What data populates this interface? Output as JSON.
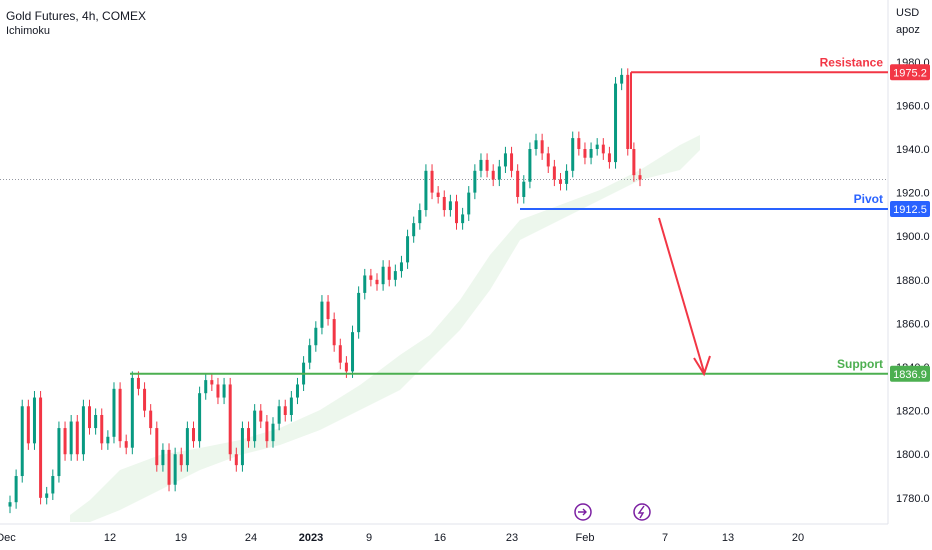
{
  "header": {
    "title": "Gold Futures, 4h, COMEX",
    "indicator": "Ichimoku",
    "currency": "USD",
    "mode": "apoz"
  },
  "chart_data": {
    "type": "candlestick",
    "xlabel": "",
    "ylabel": "",
    "ylim": [
      1768,
      1990
    ],
    "x_tick_labels": [
      "Dec",
      "12",
      "19",
      "24",
      "2023",
      "9",
      "16",
      "23",
      "Feb",
      "7",
      "13",
      "20"
    ],
    "y_tick_labels": [
      "1780.0",
      "1800.0",
      "1820.0",
      "1840.0",
      "1860.0",
      "1880.0",
      "1900.0",
      "1920.0",
      "1940.0",
      "1960.0",
      "1980.0"
    ],
    "levels": [
      {
        "name": "Resistance",
        "value": 1975.2,
        "label": "1975.2",
        "color": "#f23645"
      },
      {
        "name": "Pivot",
        "value": 1912.5,
        "label": "1912.5",
        "color": "#2962ff"
      },
      {
        "name": "Support",
        "value": 1836.9,
        "label": "1836.9",
        "color": "#4caf50"
      }
    ],
    "current_price": 1926,
    "price_path": [
      [
        1778,
        "Dec"
      ],
      [
        1790,
        ""
      ],
      [
        1822,
        ""
      ],
      [
        1805,
        ""
      ],
      [
        1826,
        ""
      ],
      [
        1780,
        ""
      ],
      [
        1782,
        ""
      ],
      [
        1790,
        ""
      ],
      [
        1812,
        ""
      ],
      [
        1800,
        ""
      ],
      [
        1815,
        ""
      ],
      [
        1800,
        ""
      ],
      [
        1822,
        ""
      ],
      [
        1812,
        ""
      ],
      [
        1818,
        ""
      ],
      [
        1805,
        ""
      ],
      [
        1808,
        ""
      ],
      [
        1830,
        ""
      ],
      [
        1806,
        ""
      ],
      [
        1803,
        ""
      ],
      [
        1835,
        ""
      ],
      [
        1830,
        ""
      ],
      [
        1820,
        ""
      ],
      [
        1812,
        ""
      ],
      [
        1795,
        ""
      ],
      [
        1802,
        ""
      ],
      [
        1786,
        ""
      ],
      [
        1800,
        ""
      ],
      [
        1795,
        ""
      ],
      [
        1812,
        ""
      ],
      [
        1806,
        ""
      ],
      [
        1828,
        ""
      ],
      [
        1834,
        ""
      ],
      [
        1832,
        ""
      ],
      [
        1826,
        ""
      ],
      [
        1832,
        ""
      ],
      [
        1800,
        ""
      ],
      [
        1795,
        ""
      ],
      [
        1812,
        ""
      ],
      [
        1806,
        ""
      ],
      [
        1820,
        ""
      ],
      [
        1815,
        ""
      ],
      [
        1806,
        ""
      ],
      [
        1814,
        ""
      ],
      [
        1822,
        ""
      ],
      [
        1818,
        ""
      ],
      [
        1826,
        ""
      ],
      [
        1832,
        ""
      ],
      [
        1842,
        ""
      ],
      [
        1850,
        ""
      ],
      [
        1858,
        ""
      ],
      [
        1870,
        ""
      ],
      [
        1862,
        ""
      ],
      [
        1850,
        ""
      ],
      [
        1842,
        ""
      ],
      [
        1838,
        ""
      ],
      [
        1856,
        ""
      ],
      [
        1874,
        ""
      ],
      [
        1882,
        ""
      ],
      [
        1880,
        ""
      ],
      [
        1878,
        ""
      ],
      [
        1886,
        ""
      ],
      [
        1880,
        ""
      ],
      [
        1884,
        ""
      ],
      [
        1888,
        ""
      ],
      [
        1900,
        ""
      ],
      [
        1906,
        ""
      ],
      [
        1912,
        ""
      ],
      [
        1930,
        ""
      ],
      [
        1920,
        ""
      ],
      [
        1918,
        ""
      ],
      [
        1912,
        ""
      ],
      [
        1916,
        ""
      ],
      [
        1906,
        ""
      ],
      [
        1910,
        ""
      ],
      [
        1920,
        ""
      ],
      [
        1930,
        ""
      ],
      [
        1935,
        ""
      ],
      [
        1930,
        ""
      ],
      [
        1926,
        ""
      ],
      [
        1932,
        ""
      ],
      [
        1938,
        ""
      ],
      [
        1930,
        ""
      ],
      [
        1918,
        ""
      ],
      [
        1925,
        ""
      ],
      [
        1940,
        ""
      ],
      [
        1944,
        ""
      ],
      [
        1938,
        ""
      ],
      [
        1932,
        ""
      ],
      [
        1926,
        ""
      ],
      [
        1924,
        ""
      ],
      [
        1930,
        ""
      ],
      [
        1945,
        ""
      ],
      [
        1940,
        ""
      ],
      [
        1936,
        ""
      ],
      [
        1940,
        ""
      ],
      [
        1942,
        ""
      ],
      [
        1938,
        ""
      ],
      [
        1934,
        ""
      ],
      [
        1970,
        ""
      ],
      [
        1974,
        ""
      ],
      [
        1940,
        ""
      ],
      [
        1928,
        ""
      ],
      [
        1926,
        ""
      ]
    ]
  }
}
